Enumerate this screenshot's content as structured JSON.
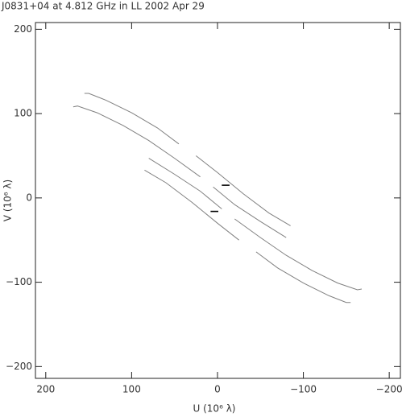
{
  "chart_data": {
    "type": "line",
    "title": "J0831+04 at 4.812 GHz in LL  2002 Apr 29",
    "xlabel": "U (10⁶ λ)",
    "ylabel": "V (10⁶ λ)",
    "xlim": [
      212,
      -213
    ],
    "ylim": [
      -214,
      208
    ],
    "xticks": [
      200,
      100,
      0,
      {
        "value": -100,
        "label": "−100"
      },
      {
        "value": -200,
        "label": "−200"
      }
    ],
    "yticks": [
      {
        "value": -200,
        "label": "−200"
      },
      {
        "value": -100,
        "label": "−100"
      },
      0,
      100,
      200
    ],
    "series": [
      {
        "color": "#808080",
        "x": [
          155,
          150,
          130,
          100,
          70,
          45,
          null,
          25,
          0,
          -30,
          -60,
          -85
        ],
        "y": [
          124,
          124,
          116,
          101,
          83,
          64,
          null,
          50,
          30,
          5,
          -18,
          -33
        ]
      },
      {
        "color": "#808080",
        "x": [
          168,
          163,
          140,
          110,
          80,
          50,
          20,
          null,
          5,
          -20,
          -50,
          -80
        ],
        "y": [
          108,
          109,
          101,
          86,
          68,
          47,
          25,
          null,
          13,
          -8,
          -28,
          -47
        ]
      },
      {
        "color": "#808080",
        "x": [
          -155,
          -150,
          -130,
          -100,
          -70,
          -45,
          null,
          -25,
          0,
          30,
          60,
          85
        ],
        "y": [
          -124,
          -124,
          -116,
          -101,
          -83,
          -64,
          null,
          -50,
          -30,
          -5,
          18,
          33
        ]
      },
      {
        "color": "#808080",
        "x": [
          -168,
          -163,
          -140,
          -110,
          -80,
          -50,
          -20,
          null,
          -5,
          20,
          50,
          80
        ],
        "y": [
          -108,
          -109,
          -101,
          -86,
          -68,
          -47,
          -25,
          null,
          -13,
          8,
          28,
          47
        ]
      },
      {
        "color": "#000000",
        "x": [
          -5,
          -14
        ],
        "y": [
          15,
          15
        ]
      },
      {
        "color": "#000000",
        "x": [
          8,
          -1
        ],
        "y": [
          -16,
          -16
        ]
      }
    ]
  }
}
